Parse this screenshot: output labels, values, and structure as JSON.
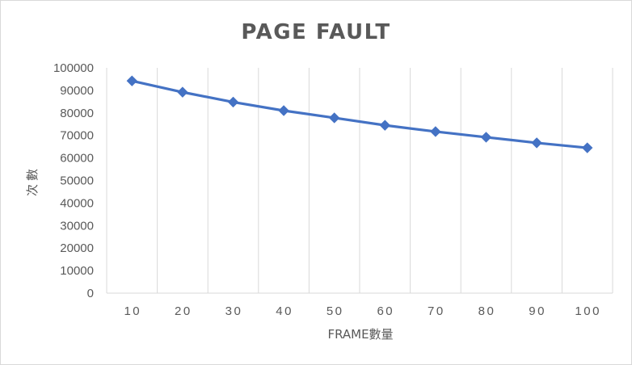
{
  "chart_data": {
    "type": "line",
    "title": "PAGE FAULT",
    "xlabel": "FRAME數量",
    "ylabel": "次數",
    "categories": [
      "10",
      "20",
      "30",
      "40",
      "50",
      "60",
      "70",
      "80",
      "90",
      "100"
    ],
    "series": [
      {
        "values": [
          94200,
          89200,
          84800,
          81000,
          77800,
          74500,
          71700,
          69200,
          66700,
          64500
        ]
      }
    ],
    "ylim": [
      0,
      100000
    ],
    "yticks": [
      "0",
      "10000",
      "20000",
      "30000",
      "40000",
      "50000",
      "60000",
      "70000",
      "80000",
      "90000",
      "100000"
    ],
    "grid": "vertical",
    "legend": "none",
    "colors": {
      "series": "#4472c4",
      "grid": "#d9d9d9",
      "text": "#595959"
    }
  }
}
